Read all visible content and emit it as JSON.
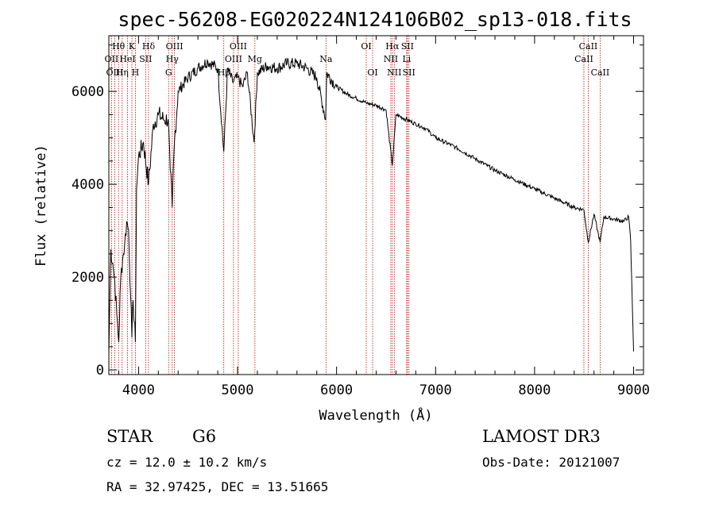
{
  "chart_data": {
    "type": "line",
    "title": "spec-56208-EG020224N124106B02_sp13-018.fits",
    "xlabel": "Wavelength (Å)",
    "ylabel": "Flux (relative)",
    "xlim": [
      3700,
      9100
    ],
    "ylim": [
      -100,
      7200
    ],
    "xticks": [
      4000,
      5000,
      6000,
      7000,
      8000,
      9000
    ],
    "yticks": [
      0,
      2000,
      4000,
      6000
    ],
    "grid": false,
    "series": [
      {
        "name": "spectrum",
        "x": [
          3700,
          3720,
          3740,
          3760,
          3780,
          3800,
          3820,
          3840,
          3860,
          3880,
          3900,
          3920,
          3933,
          3945,
          3968,
          3980,
          4000,
          4050,
          4101,
          4150,
          4200,
          4250,
          4300,
          4320,
          4340,
          4360,
          4400,
          4500,
          4600,
          4700,
          4800,
          4861,
          4900,
          4950,
          5000,
          5050,
          5100,
          5167,
          5200,
          5300,
          5400,
          5500,
          5600,
          5700,
          5800,
          5890,
          5900,
          6000,
          6100,
          6200,
          6300,
          6400,
          6500,
          6563,
          6600,
          6700,
          6800,
          6900,
          7000,
          7200,
          7400,
          7600,
          7800,
          8000,
          8200,
          8400,
          8498,
          8542,
          8600,
          8662,
          8700,
          8800,
          8900,
          8950,
          8970,
          9000
        ],
        "y": [
          350,
          2600,
          2300,
          1900,
          1200,
          600,
          2000,
          2400,
          2700,
          3200,
          3000,
          1600,
          700,
          1500,
          600,
          3900,
          4600,
          4900,
          4000,
          5300,
          5500,
          5400,
          5400,
          4300,
          3500,
          4800,
          6000,
          6300,
          6500,
          6650,
          6500,
          4700,
          6500,
          6200,
          6300,
          6100,
          6400,
          4900,
          6400,
          6550,
          6500,
          6600,
          6600,
          6500,
          6300,
          5400,
          6400,
          6100,
          5950,
          5850,
          5750,
          5700,
          5600,
          4400,
          5500,
          5400,
          5300,
          5200,
          5000,
          4800,
          4550,
          4300,
          4100,
          3900,
          3700,
          3500,
          3450,
          2750,
          3350,
          2750,
          3300,
          3250,
          3200,
          3300,
          2800,
          400
        ]
      }
    ],
    "lines": [
      {
        "name": "Hθ",
        "x": 3798,
        "row": 1
      },
      {
        "name": "K",
        "x": 3933,
        "row": 1
      },
      {
        "name": "Hδ",
        "x": 4101,
        "row": 1
      },
      {
        "name": "OII",
        "x": 3727,
        "row": 2
      },
      {
        "name": "HeI",
        "x": 3889,
        "row": 2
      },
      {
        "name": "SII",
        "x": 4072,
        "row": 2
      },
      {
        "name": "OIII",
        "x": 3760,
        "row": 3
      },
      {
        "name": "Hη",
        "x": 3835,
        "row": 3
      },
      {
        "name": "H",
        "x": 3968,
        "row": 3
      },
      {
        "name": "OIII",
        "x": 4363,
        "row": 1
      },
      {
        "name": "Hγ",
        "x": 4340,
        "row": 2
      },
      {
        "name": "G",
        "x": 4304,
        "row": 3
      },
      {
        "name": "OIII",
        "x": 5007,
        "row": 1
      },
      {
        "name": "OIII",
        "x": 4959,
        "row": 2
      },
      {
        "name": "Hβ",
        "x": 4861,
        "row": 3
      },
      {
        "name": "Mg",
        "x": 5175,
        "row": 2
      },
      {
        "name": "Na",
        "x": 5893,
        "row": 2
      },
      {
        "name": "OI",
        "x": 6300,
        "row": 1
      },
      {
        "name": "OI",
        "x": 6364,
        "row": 3
      },
      {
        "name": "Hα",
        "x": 6563,
        "row": 1
      },
      {
        "name": "SII",
        "x": 6716,
        "row": 1
      },
      {
        "name": "NII",
        "x": 6548,
        "row": 2
      },
      {
        "name": "Li",
        "x": 6708,
        "row": 2
      },
      {
        "name": "NII",
        "x": 6583,
        "row": 3
      },
      {
        "name": "SII",
        "x": 6731,
        "row": 3
      },
      {
        "name": "CaII",
        "x": 8542,
        "row": 1
      },
      {
        "name": "CaII",
        "x": 8498,
        "row": 2
      },
      {
        "name": "CaII",
        "x": 8662,
        "row": 3
      }
    ]
  },
  "info": {
    "class": "STAR",
    "subclass": "G6",
    "survey": "LAMOST DR3",
    "cz": "cz = 12.0 ± 10.2 km/s",
    "obs_date": "Obs-Date: 20121007",
    "coords": "RA =  32.97425, DEC =  13.51665"
  },
  "colors": {
    "axis": "#000000",
    "spectrum": "#000000",
    "line_marker": "#cc0000"
  }
}
